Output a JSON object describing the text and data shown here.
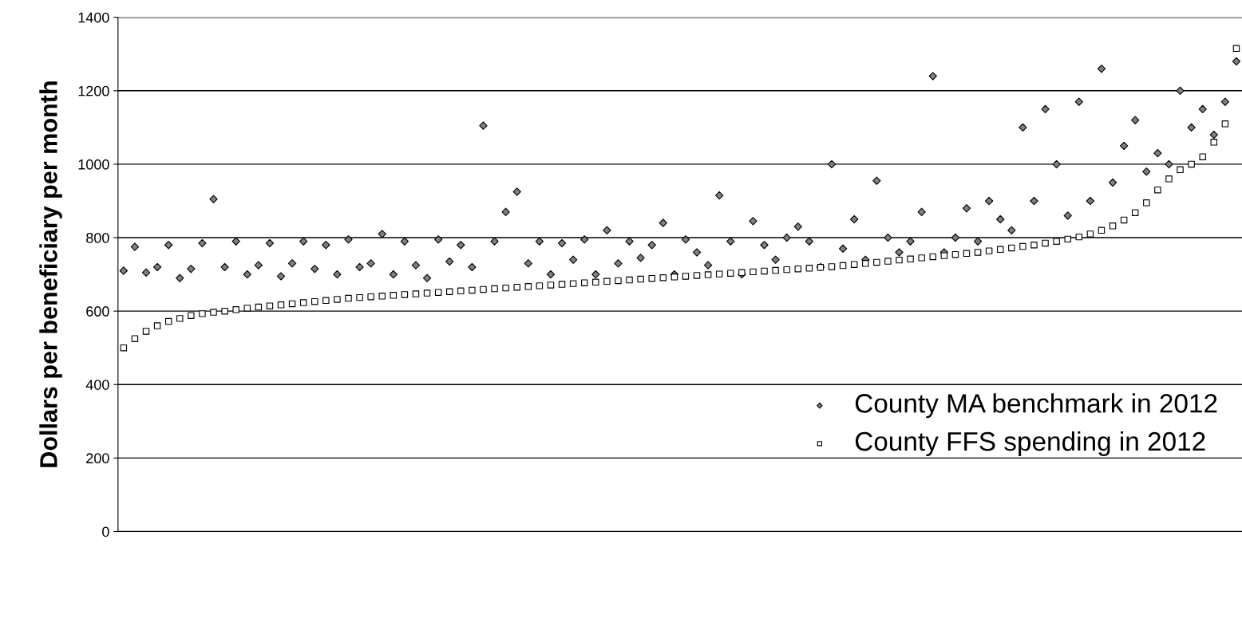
{
  "chart_data": {
    "type": "scatter",
    "ylabel": "Dollars per beneficiary per month",
    "categories": [
      null,
      null,
      null,
      null,
      null,
      null,
      null,
      null,
      null,
      null,
      null,
      null,
      null,
      null,
      null,
      null,
      null,
      null,
      null,
      null,
      null,
      null,
      null,
      null,
      null,
      null,
      null,
      null,
      null,
      null,
      null,
      null,
      null,
      null,
      null,
      null,
      null,
      null,
      null,
      null,
      null,
      null,
      null,
      null,
      null,
      null,
      null,
      null,
      null,
      null,
      null,
      null,
      null,
      null,
      null,
      null,
      null,
      null,
      null,
      null,
      null,
      null,
      null,
      null,
      null,
      null,
      null,
      null,
      null,
      null,
      null,
      null,
      null,
      null,
      null,
      null,
      null,
      null,
      null,
      null,
      null,
      null,
      null,
      null,
      null,
      null,
      null,
      null,
      null,
      null,
      null,
      null,
      null,
      null,
      null,
      null,
      null,
      null,
      null,
      null
    ],
    "series": [
      {
        "name": "County MA benchmark in 2012",
        "color": "#808080",
        "marker": "diamond",
        "values": [
          710,
          775,
          705,
          720,
          780,
          690,
          715,
          785,
          905,
          720,
          790,
          700,
          725,
          785,
          695,
          730,
          790,
          715,
          780,
          700,
          795,
          720,
          730,
          810,
          700,
          790,
          725,
          690,
          795,
          735,
          780,
          720,
          1105,
          790,
          870,
          925,
          730,
          790,
          700,
          785,
          740,
          795,
          700,
          820,
          730,
          790,
          745,
          780,
          840,
          700,
          795,
          760,
          725,
          915,
          790,
          700,
          845,
          780,
          740,
          800,
          830,
          790,
          720,
          1000,
          770,
          850,
          740,
          955,
          800,
          760,
          790,
          870,
          1240,
          760,
          800,
          880,
          790,
          900,
          850,
          820,
          1100,
          900,
          1150,
          1000,
          860,
          1170,
          900,
          1260,
          950,
          1050,
          1120,
          980,
          1030,
          1000,
          1200,
          1100,
          1150,
          1080,
          1170,
          1280
        ]
      },
      {
        "name": "County FFS spending in 2012",
        "color": "#ffffff",
        "marker": "square",
        "values": [
          500,
          525,
          545,
          560,
          572,
          580,
          588,
          593,
          597,
          600,
          604,
          608,
          611,
          614,
          617,
          620,
          623,
          626,
          629,
          632,
          635,
          637,
          639,
          641,
          643,
          645,
          647,
          649,
          651,
          653,
          655,
          657,
          659,
          661,
          663,
          665,
          667,
          669,
          671,
          673,
          675,
          677,
          679,
          681,
          683,
          685,
          687,
          689,
          691,
          693,
          695,
          697,
          699,
          701,
          703,
          705,
          707,
          709,
          711,
          713,
          715,
          717,
          719,
          721,
          724,
          727,
          730,
          733,
          736,
          739,
          742,
          745,
          748,
          751,
          754,
          757,
          760,
          764,
          768,
          772,
          776,
          780,
          785,
          790,
          796,
          802,
          810,
          820,
          832,
          848,
          868,
          895,
          930,
          960,
          985,
          1000,
          1020,
          1060,
          1110,
          1315
        ]
      }
    ],
    "ylim": [
      0,
      1400
    ],
    "yticks": [
      0,
      200,
      400,
      600,
      800,
      1000,
      1200,
      1400
    ],
    "grid": "y",
    "legend": "lower right",
    "tick_labels": "y"
  }
}
